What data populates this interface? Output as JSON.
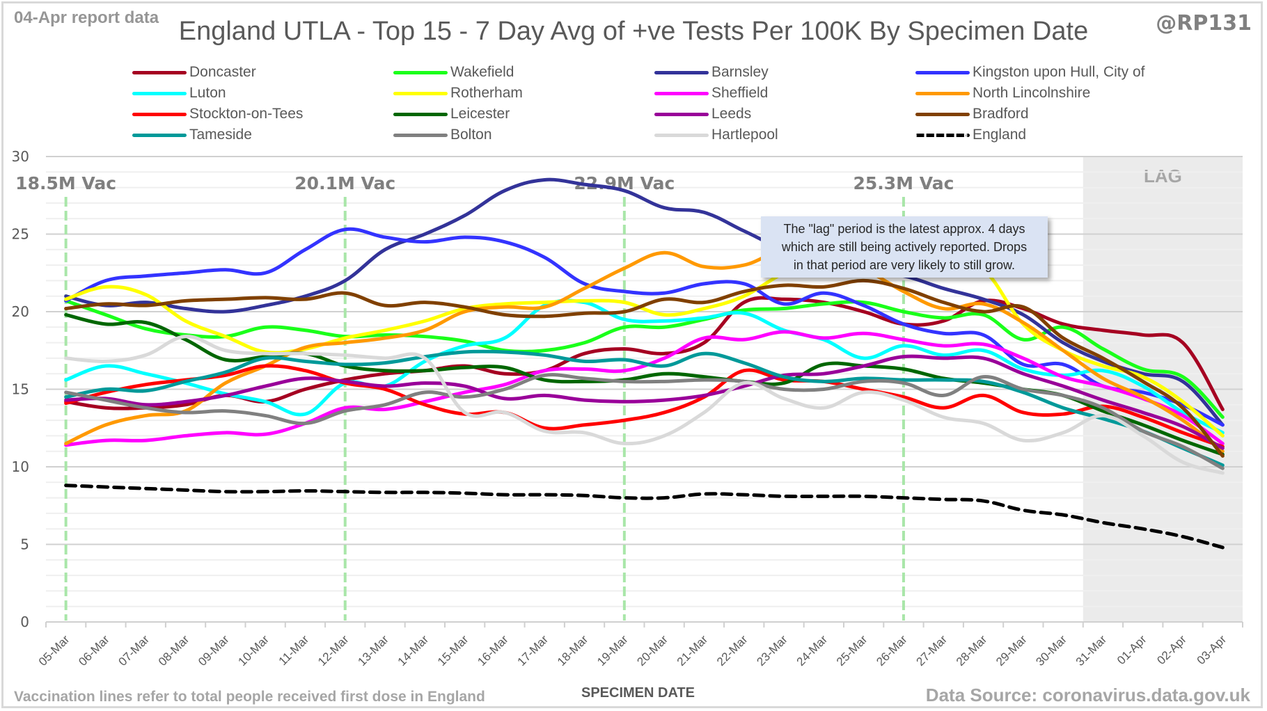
{
  "header": {
    "report_date": "04-Apr report data",
    "handle": "@RP131"
  },
  "footer": {
    "note": "Vaccination lines refer to total people received first dose in England",
    "source": "Data Source: coronavirus.data.gov.uk"
  },
  "callout": {
    "lines": [
      "The \"lag\" period is the latest approx. 4 days",
      "which are still being actively reported.  Drops",
      "in that period are very likely to still grow."
    ]
  },
  "chart_data": {
    "type": "line",
    "title": "England UTLA - Top 15 - 7 Day Avg of +ve Tests Per 100K By Specimen Date",
    "xlabel": "SPECIMEN DATE",
    "ylabel": "",
    "ylim": [
      0,
      30
    ],
    "yticks": [
      0,
      5,
      10,
      15,
      20,
      25,
      30
    ],
    "grid": true,
    "legend_position": "top",
    "categories": [
      "05-Mar",
      "06-Mar",
      "07-Mar",
      "08-Mar",
      "09-Mar",
      "10-Mar",
      "11-Mar",
      "12-Mar",
      "13-Mar",
      "14-Mar",
      "15-Mar",
      "16-Mar",
      "17-Mar",
      "18-Mar",
      "19-Mar",
      "20-Mar",
      "21-Mar",
      "22-Mar",
      "23-Mar",
      "24-Mar",
      "25-Mar",
      "26-Mar",
      "27-Mar",
      "28-Mar",
      "29-Mar",
      "30-Mar",
      "31-Mar",
      "01-Apr",
      "02-Apr",
      "03-Apr"
    ],
    "lag_region": {
      "start": "31-Mar",
      "end": "03-Apr",
      "label": "LAG",
      "color": "#ebebeb"
    },
    "vaccination_markers": [
      {
        "date": "05-Mar",
        "label": "18.5M Vac"
      },
      {
        "date": "12-Mar",
        "label": "20.1M Vac"
      },
      {
        "date": "19-Mar",
        "label": "22.9M Vac"
      },
      {
        "date": "26-Mar",
        "label": "25.3M Vac"
      }
    ],
    "vaccination_marker_color": "#a9e6a9",
    "series": [
      {
        "name": "Doncaster",
        "color": "#a50021",
        "dashed": false,
        "values": [
          14.2,
          13.8,
          13.8,
          14.0,
          14.6,
          14.2,
          15.0,
          15.6,
          16.0,
          16.2,
          16.5,
          16.0,
          16.2,
          17.3,
          17.6,
          17.3,
          18.0,
          20.6,
          20.8,
          20.6,
          20.0,
          19.2,
          19.4,
          20.7,
          20.2,
          19.2,
          18.8,
          18.5,
          18.0,
          13.7
        ]
      },
      {
        "name": "Wakefield",
        "color": "#1aff1a",
        "dashed": false,
        "values": [
          20.7,
          19.8,
          18.9,
          18.5,
          18.4,
          19.0,
          18.8,
          18.4,
          18.5,
          18.4,
          18.1,
          17.5,
          17.5,
          18.0,
          19.0,
          19.0,
          19.5,
          20.1,
          20.2,
          20.5,
          20.6,
          20.0,
          19.6,
          19.8,
          18.2,
          19.0,
          17.6,
          16.3,
          15.8,
          13.2
        ]
      },
      {
        "name": "Barnsley",
        "color": "#333399",
        "dashed": false,
        "values": [
          21.0,
          20.4,
          20.6,
          20.2,
          20.0,
          20.4,
          21.0,
          22.0,
          24.0,
          25.0,
          26.2,
          27.8,
          28.5,
          28.2,
          27.8,
          26.7,
          26.4,
          25.2,
          24.0,
          23.2,
          22.5,
          22.3,
          21.5,
          20.8,
          19.8,
          18.0,
          16.8,
          16.0,
          15.5,
          12.7
        ]
      },
      {
        "name": "Kingston upon Hull, City of",
        "color": "#3333ff",
        "dashed": false,
        "values": [
          20.7,
          22.0,
          22.3,
          22.5,
          22.7,
          22.5,
          24.0,
          25.3,
          24.8,
          24.5,
          24.8,
          24.5,
          23.5,
          21.8,
          21.3,
          21.2,
          21.8,
          21.8,
          20.5,
          21.2,
          20.4,
          19.2,
          18.6,
          18.5,
          16.6,
          16.6,
          15.2,
          14.8,
          14.0,
          12.7
        ]
      },
      {
        "name": "Luton",
        "color": "#00ffff",
        "dashed": false,
        "values": [
          15.6,
          16.5,
          16.0,
          15.4,
          14.7,
          14.2,
          13.4,
          15.4,
          15.2,
          16.8,
          17.8,
          18.3,
          20.4,
          20.6,
          19.5,
          19.4,
          19.6,
          19.9,
          18.8,
          18.2,
          17.0,
          17.8,
          17.2,
          17.5,
          16.3,
          15.9,
          16.2,
          15.2,
          13.5,
          12.2
        ]
      },
      {
        "name": "Rotherham",
        "color": "#ffff00",
        "dashed": false,
        "values": [
          20.8,
          21.6,
          21.1,
          19.4,
          18.4,
          17.4,
          17.6,
          18.3,
          18.8,
          19.4,
          20.2,
          20.5,
          20.6,
          20.7,
          20.6,
          19.8,
          20.2,
          21.0,
          22.5,
          23.5,
          24.0,
          23.8,
          23.0,
          22.7,
          19.2,
          17.5,
          16.5,
          15.8,
          14.2,
          12.0
        ]
      },
      {
        "name": "Sheffield",
        "color": "#ff00ff",
        "dashed": false,
        "values": [
          11.4,
          11.7,
          11.7,
          12.0,
          12.2,
          12.1,
          12.8,
          13.8,
          13.7,
          14.2,
          14.8,
          15.3,
          16.2,
          16.3,
          16.2,
          17.0,
          18.3,
          18.2,
          18.7,
          18.3,
          18.6,
          18.2,
          17.8,
          17.9,
          17.0,
          15.8,
          15.2,
          14.4,
          13.3,
          11.5
        ]
      },
      {
        "name": "North Lincolnshire",
        "color": "#ff9900",
        "dashed": false,
        "values": [
          11.5,
          12.7,
          13.3,
          13.6,
          15.4,
          16.5,
          17.7,
          18.0,
          18.3,
          18.8,
          20.0,
          20.3,
          20.3,
          21.5,
          22.8,
          23.8,
          22.9,
          23.0,
          24.0,
          24.0,
          22.8,
          21.3,
          20.2,
          20.5,
          19.3,
          17.5,
          15.7,
          14.5,
          13.0,
          11.0
        ]
      },
      {
        "name": "Stockton-on-Tees",
        "color": "#ff0000",
        "dashed": false,
        "values": [
          14.1,
          14.8,
          15.3,
          15.6,
          15.9,
          16.5,
          16.2,
          15.4,
          15.0,
          14.0,
          13.4,
          13.5,
          12.5,
          12.7,
          13.0,
          13.5,
          14.5,
          16.2,
          15.6,
          15.5,
          15.0,
          14.5,
          13.8,
          14.6,
          13.5,
          13.4,
          13.9,
          13.2,
          12.2,
          11.3
        ]
      },
      {
        "name": "Leicester",
        "color": "#006600",
        "dashed": false,
        "values": [
          19.8,
          19.2,
          19.3,
          18.2,
          16.9,
          17.1,
          17.3,
          16.5,
          16.2,
          16.2,
          16.4,
          16.4,
          15.6,
          15.5,
          15.6,
          16.0,
          15.8,
          15.5,
          15.4,
          16.6,
          16.5,
          16.3,
          15.7,
          15.4,
          15.0,
          14.6,
          13.6,
          12.7,
          11.7,
          10.8
        ]
      },
      {
        "name": "Leeds",
        "color": "#990099",
        "dashed": false,
        "values": [
          14.3,
          14.4,
          14.0,
          14.2,
          14.6,
          15.2,
          15.7,
          15.5,
          15.2,
          15.4,
          15.2,
          14.4,
          14.6,
          14.3,
          14.2,
          14.3,
          14.6,
          15.2,
          15.9,
          16.0,
          16.5,
          17.1,
          17.0,
          17.0,
          16.0,
          15.2,
          14.3,
          13.5,
          12.6,
          11.2
        ]
      },
      {
        "name": "Bradford",
        "color": "#804000",
        "dashed": false,
        "values": [
          20.2,
          20.5,
          20.4,
          20.7,
          20.8,
          20.9,
          20.8,
          21.2,
          20.4,
          20.6,
          20.3,
          19.8,
          19.7,
          19.9,
          20.0,
          20.8,
          20.6,
          21.3,
          21.7,
          21.6,
          22.0,
          21.5,
          20.6,
          20.0,
          20.3,
          18.3,
          17.0,
          15.5,
          13.8,
          10.7
        ]
      },
      {
        "name": "Tameside",
        "color": "#009999",
        "dashed": false,
        "values": [
          14.5,
          15.0,
          14.9,
          15.5,
          16.1,
          17.0,
          16.8,
          16.6,
          16.7,
          17.1,
          17.4,
          17.4,
          17.2,
          16.8,
          16.9,
          16.5,
          17.3,
          16.7,
          15.8,
          15.5,
          15.7,
          15.6,
          15.6,
          15.5,
          14.8,
          13.8,
          13.1,
          12.3,
          11.2,
          10.1
        ]
      },
      {
        "name": "Bolton",
        "color": "#808080",
        "dashed": false,
        "values": [
          14.8,
          14.3,
          13.8,
          13.5,
          13.6,
          13.3,
          12.8,
          13.6,
          14.0,
          14.8,
          14.5,
          15.0,
          15.9,
          15.7,
          15.5,
          15.5,
          15.6,
          15.5,
          15.0,
          15.0,
          15.5,
          15.4,
          14.6,
          15.8,
          15.0,
          14.6,
          13.8,
          12.3,
          11.3,
          9.9
        ]
      },
      {
        "name": "Hartlepool",
        "color": "#d9d9d9",
        "dashed": false,
        "values": [
          17.0,
          16.8,
          17.2,
          18.4,
          17.5,
          17.3,
          17.3,
          17.2,
          17.0,
          17.0,
          13.5,
          13.5,
          12.3,
          12.2,
          11.5,
          12.0,
          13.5,
          15.4,
          14.4,
          13.8,
          14.8,
          14.3,
          13.2,
          12.8,
          11.7,
          12.2,
          13.3,
          12.0,
          10.3,
          9.6
        ]
      },
      {
        "name": "England",
        "color": "#000000",
        "dashed": true,
        "values": [
          8.8,
          8.7,
          8.6,
          8.5,
          8.4,
          8.4,
          8.45,
          8.4,
          8.35,
          8.35,
          8.3,
          8.2,
          8.2,
          8.15,
          8.0,
          8.0,
          8.25,
          8.2,
          8.1,
          8.1,
          8.1,
          8.0,
          7.9,
          7.8,
          7.2,
          6.9,
          6.4,
          6.0,
          5.5,
          4.8
        ]
      }
    ],
    "legend_order": [
      "Doncaster",
      "Wakefield",
      "Barnsley",
      "Kingston upon Hull, City of",
      "Luton",
      "Rotherham",
      "Sheffield",
      "North Lincolnshire",
      "Stockton-on-Tees",
      "Leicester",
      "Leeds",
      "Bradford",
      "Tameside",
      "Bolton",
      "Hartlepool",
      "England"
    ]
  }
}
